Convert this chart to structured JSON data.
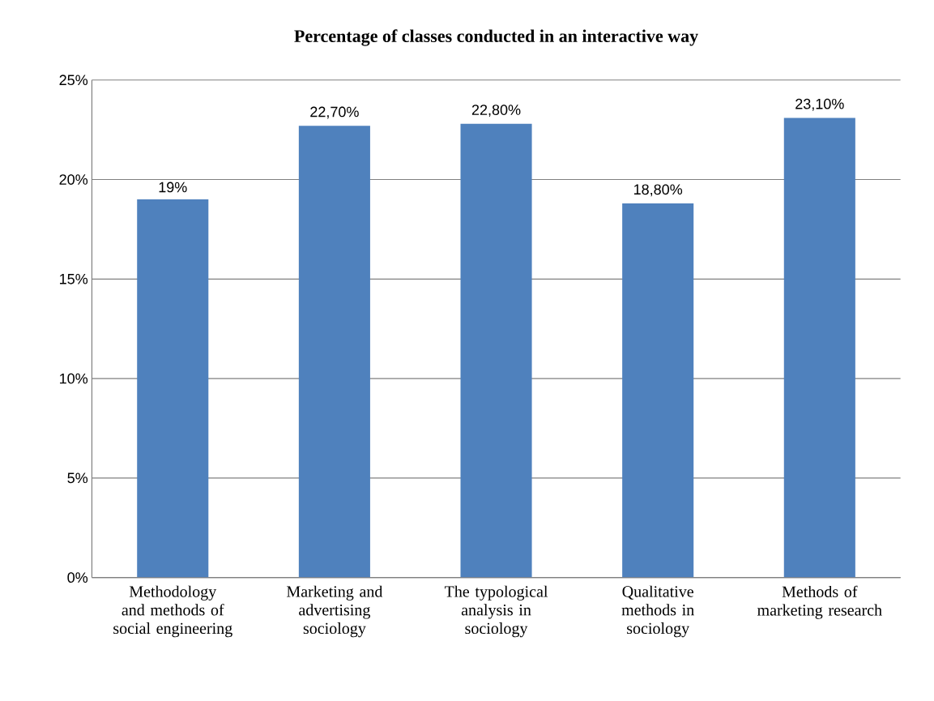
{
  "chart_data": {
    "type": "bar",
    "title": "Percentage of classes conducted in an interactive way",
    "categories": [
      "Methodology and methods of social engineering",
      "Marketing and advertising sociology",
      "The typological analysis in sociology",
      "Qualitative methods in sociology",
      "Methods of marketing research"
    ],
    "values": [
      19,
      22.7,
      22.8,
      18.8,
      23.1
    ],
    "value_labels": [
      "19%",
      "22,70%",
      "22,80%",
      "18,80%",
      "23,10%"
    ],
    "color": "#4f81bd",
    "ylim": [
      0,
      25
    ],
    "yticks": [
      {
        "value": 0,
        "label": "0%"
      },
      {
        "value": 5,
        "label": "5%"
      },
      {
        "value": 10,
        "label": "10%"
      },
      {
        "value": 15,
        "label": "15%"
      },
      {
        "value": 20,
        "label": "20%"
      },
      {
        "value": 25,
        "label": "25%"
      }
    ],
    "grid": "y"
  }
}
